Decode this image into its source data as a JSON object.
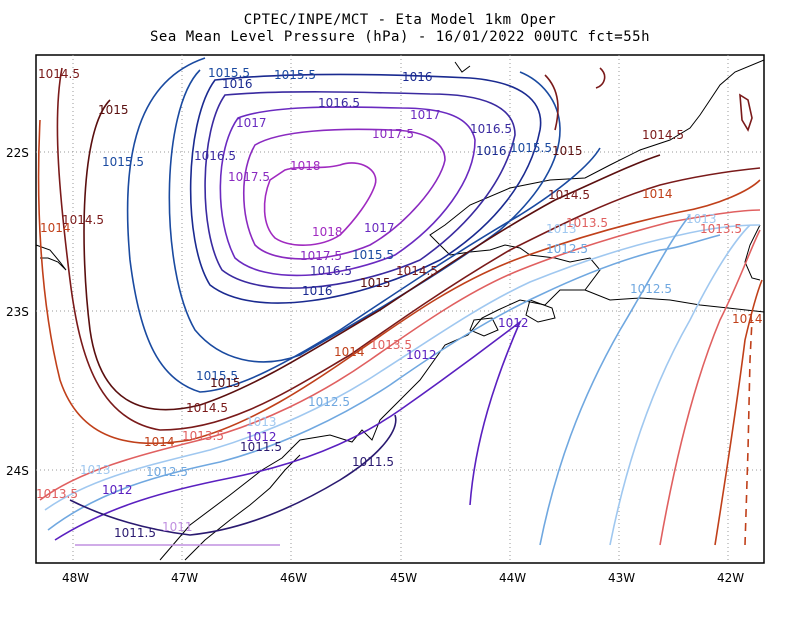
{
  "header": {
    "line1": "CPTEC/INPE/MCT -  Eta Model 1km Oper",
    "line2": "Sea Mean Level Pressure (hPa) - 16/01/2022 00UTC fct=55h"
  },
  "axes": {
    "lon_ticks": [
      "48W",
      "47W",
      "46W",
      "45W",
      "44W",
      "43W",
      "42W"
    ],
    "lat_ticks": [
      "22S",
      "23S",
      "24S"
    ]
  },
  "isobar_labels": [
    {
      "text": "1014.5",
      "color": "#7a1a1a"
    },
    {
      "text": "1015",
      "color": "#5a0f0f"
    },
    {
      "text": "1015.5",
      "color": "#1a4aa0"
    },
    {
      "text": "1016",
      "color": "#1a2a90"
    },
    {
      "text": "1016.5",
      "color": "#3a2aa0"
    },
    {
      "text": "1017",
      "color": "#6a2ac0"
    },
    {
      "text": "1017.5",
      "color": "#8a2ac0"
    },
    {
      "text": "1018",
      "color": "#a02ac0"
    },
    {
      "text": "1014",
      "color": "#c0401a"
    },
    {
      "text": "1013.5",
      "color": "#e06060"
    },
    {
      "text": "1013",
      "color": "#a0c8f0"
    },
    {
      "text": "1012.5",
      "color": "#70a8e0"
    },
    {
      "text": "1012",
      "color": "#5a20c0"
    },
    {
      "text": "1011.5",
      "color": "#2a1a70"
    },
    {
      "text": "1011",
      "color": "#c090e0"
    }
  ]
}
